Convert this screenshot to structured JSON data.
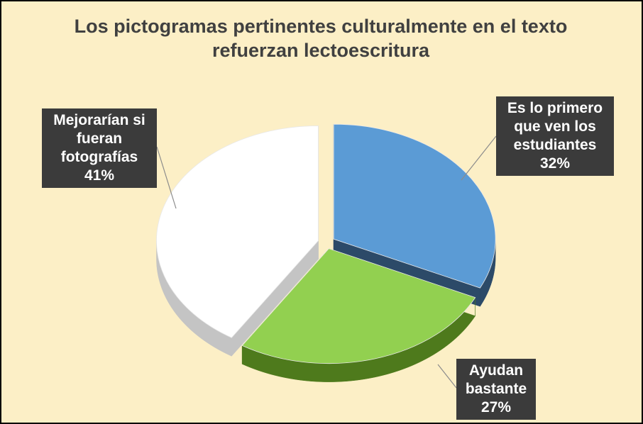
{
  "chart_data": {
    "type": "pie",
    "title": "Los pictogramas pertinentes culturalmente en el texto refuerzan lectoescritura",
    "categories": [
      "Es lo primero que ven los estudiantes",
      "Ayudan bastante",
      "Mejorarían si fueran fotografías"
    ],
    "values": [
      32,
      27,
      41
    ],
    "value_labels": [
      "32%",
      "27%",
      "41%"
    ],
    "colors": [
      "#5b9bd5",
      "#92d050",
      "#ffffff"
    ]
  }
}
